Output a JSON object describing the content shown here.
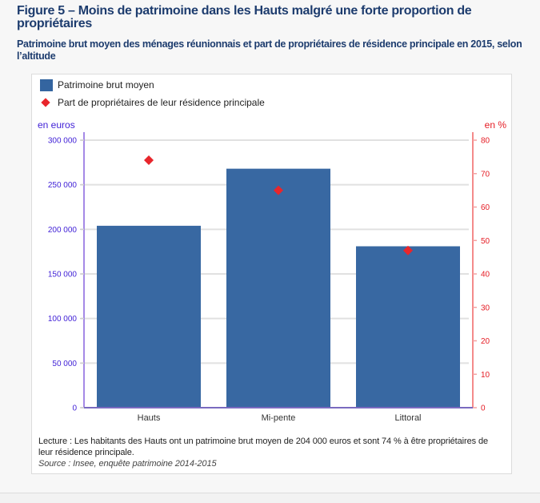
{
  "header": {
    "title": "Figure 5 – Moins de patrimoine dans les Hauts malgré une forte proportion de propriétaires",
    "subtitle": "Patrimoine brut moyen des ménages réunionnais et part de propriétaires de résidence principale en 2015, selon l’altitude"
  },
  "chart_data": {
    "type": "bar",
    "title": "Figure 5 – Moins de patrimoine dans les Hauts malgré une forte proportion de propriétaires",
    "subtitle": "Patrimoine brut moyen des ménages réunionnais et part de propriétaires de résidence principale en 2015, selon l’altitude",
    "xlabel": "",
    "categories": [
      "Hauts",
      "Mi-pente",
      "Littoral"
    ],
    "series": [
      {
        "name": "Patrimoine brut moyen",
        "type": "bar",
        "axis": "left",
        "values": [
          204000,
          268000,
          181000
        ],
        "color": "#3465a0"
      },
      {
        "name": "Part de propriétaires de leur résidence principale",
        "type": "scatter",
        "marker": "diamond",
        "axis": "right",
        "values": [
          74,
          65,
          47
        ],
        "color": "#e8262c"
      }
    ],
    "y_left": {
      "label": "en euros",
      "range": [
        0,
        300000
      ],
      "ticks": [
        0,
        50000,
        100000,
        150000,
        200000,
        250000,
        300000
      ],
      "tick_labels": [
        "0",
        "50 000",
        "100 000",
        "150 000",
        "200 000",
        "250 000",
        "300 000"
      ],
      "color": "#3f1fd6"
    },
    "y_right": {
      "label": "en %",
      "range": [
        0,
        80
      ],
      "ticks": [
        0,
        10,
        20,
        30,
        40,
        50,
        60,
        70,
        80
      ],
      "tick_labels": [
        "0",
        "10",
        "20",
        "30",
        "40",
        "50",
        "60",
        "70",
        "80"
      ],
      "color": "#e51c24"
    },
    "grid": true,
    "legend": "top-left"
  },
  "notes": {
    "lecture": "Lecture : Les habitants des Hauts ont un patrimoine brut moyen de 204 000 euros et sont 74 % à être propriétaires de leur résidence principale.",
    "source": "Source : Insee, enquête patrimoine 2014-2015"
  }
}
